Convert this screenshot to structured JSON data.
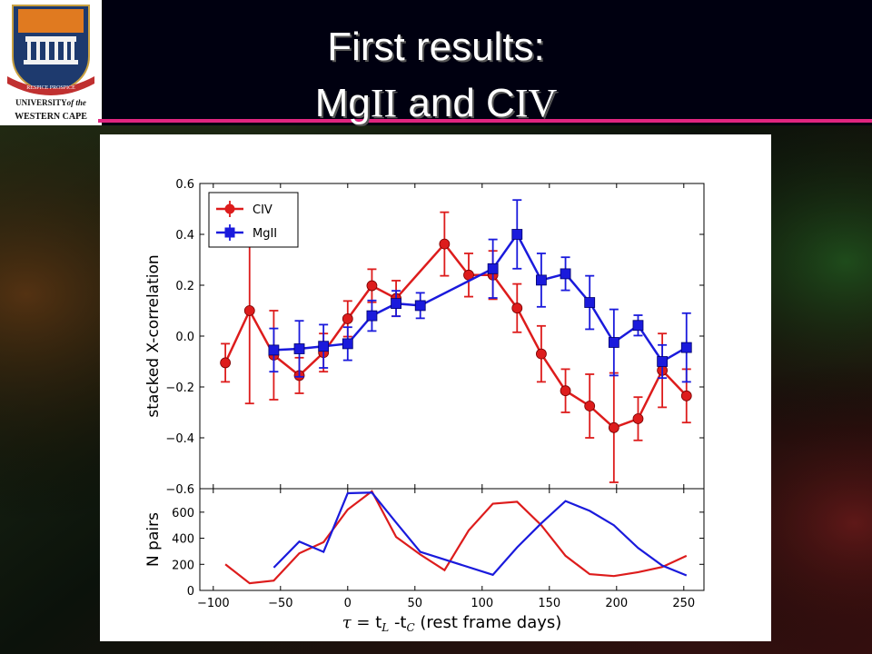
{
  "slide": {
    "title_line1": "First results:",
    "title_mg": "Mg",
    "title_mg_ion": "II",
    "title_and": " and C",
    "title_c_ion": "IV",
    "pink_line_color": "#e0257f",
    "background_color": "#0a0d0a"
  },
  "logo": {
    "line1": "UNIVERSITY",
    "line1_italic": "of the",
    "line2": "WESTERN CAPE",
    "motto": "RESPICE PROSPICE"
  },
  "chart_data": [
    {
      "panel": "upper",
      "type": "line",
      "ylabel": "stacked X-correlation",
      "xlim": [
        -110,
        265
      ],
      "ylim": [
        -0.6,
        0.6
      ],
      "yticks": [
        -0.6,
        -0.4,
        -0.2,
        0.0,
        0.2,
        0.4,
        0.6
      ],
      "ytick_labels": [
        "−0.6",
        "−0.4",
        "−0.2",
        "0.0",
        "0.2",
        "0.4",
        "0.6"
      ],
      "grid": false,
      "legend_position": "top-left",
      "series": [
        {
          "name": "CIV",
          "color": "#dd1c1c",
          "marker": "circle",
          "x": [
            -91,
            -73,
            -55,
            -36,
            -18,
            0,
            18,
            36,
            54,
            72,
            90,
            108,
            126,
            144,
            162,
            180,
            198,
            216,
            234,
            252
          ],
          "y": [
            -0.105,
            0.1,
            -0.075,
            -0.155,
            -0.065,
            0.068,
            0.198,
            0.148,
            null,
            0.362,
            0.24,
            0.24,
            0.11,
            -0.07,
            -0.215,
            -0.275,
            -0.36,
            -0.325,
            -0.135,
            -0.235
          ],
          "err": [
            0.075,
            0.365,
            0.175,
            0.07,
            0.075,
            0.07,
            0.065,
            0.07,
            null,
            0.125,
            0.085,
            0.095,
            0.095,
            0.11,
            0.085,
            0.125,
            0.215,
            0.085,
            0.145,
            0.105
          ]
        },
        {
          "name": "MgII",
          "color": "#1a1adc",
          "marker": "square",
          "x": [
            -55,
            -36,
            -18,
            0,
            18,
            36,
            54,
            108,
            126,
            144,
            162,
            180,
            198,
            216,
            234,
            252
          ],
          "y": [
            -0.055,
            -0.05,
            -0.04,
            -0.03,
            0.08,
            0.128,
            0.12,
            0.265,
            0.4,
            0.22,
            0.245,
            0.132,
            -0.025,
            0.042,
            -0.1,
            -0.045
          ],
          "err": [
            0.085,
            0.11,
            0.085,
            0.065,
            0.06,
            0.05,
            0.05,
            0.115,
            0.135,
            0.105,
            0.065,
            0.105,
            0.13,
            0.04,
            0.065,
            0.135
          ]
        }
      ]
    },
    {
      "panel": "lower",
      "type": "line",
      "ylabel": "N pairs",
      "xlabel_prefix": "τ = ",
      "xlabel_t1": "t",
      "xlabel_sub1": "L",
      "xlabel_mid": " -t",
      "xlabel_sub2": "C",
      "xlabel_suffix": "  (rest frame days)",
      "xlim": [
        -110,
        265
      ],
      "ylim": [
        0,
        780
      ],
      "xticks": [
        -100,
        -50,
        0,
        50,
        100,
        150,
        200,
        250
      ],
      "xtick_labels": [
        "−100",
        "−50",
        "0",
        "50",
        "100",
        "150",
        "200",
        "250"
      ],
      "yticks": [
        0,
        200,
        400,
        600
      ],
      "ytick_labels": [
        "0",
        "200",
        "400",
        "600"
      ],
      "series": [
        {
          "name": "CIV",
          "color": "#dd1c1c",
          "x": [
            -91,
            -73,
            -55,
            -36,
            -18,
            0,
            18,
            36,
            54,
            72,
            90,
            108,
            126,
            144,
            162,
            180,
            198,
            216,
            234,
            252
          ],
          "y": [
            200,
            55,
            75,
            285,
            370,
            620,
            760,
            410,
            275,
            155,
            460,
            665,
            680,
            500,
            265,
            125,
            110,
            140,
            180,
            265
          ]
        },
        {
          "name": "MgII",
          "color": "#1a1adc",
          "x": [
            -55,
            -36,
            -18,
            0,
            18,
            36,
            54,
            108,
            126,
            144,
            162,
            180,
            198,
            216,
            234,
            252
          ],
          "y": [
            175,
            375,
            295,
            745,
            750,
            520,
            295,
            120,
            330,
            515,
            685,
            610,
            500,
            325,
            190,
            115
          ]
        }
      ]
    }
  ]
}
